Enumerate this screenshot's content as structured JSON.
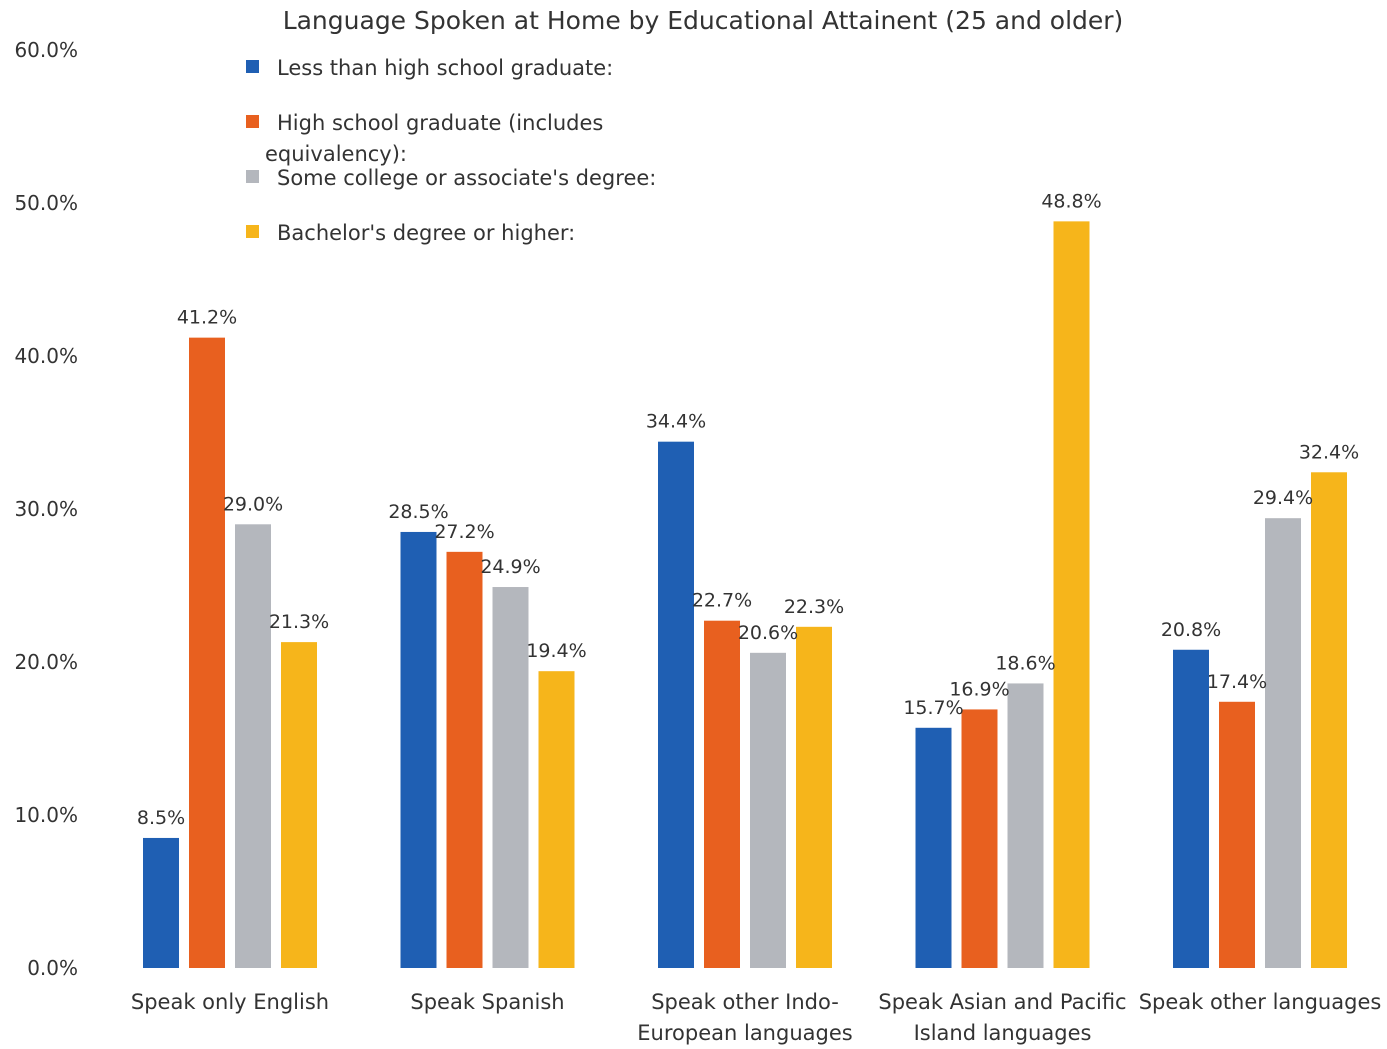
{
  "chart_data": {
    "type": "bar",
    "title": "Language Spoken at Home by Educational Attainent (25 and older)",
    "xlabel": "",
    "ylabel": "",
    "ylim": [
      0,
      60
    ],
    "y_ticks": [
      "0.0%",
      "10.0%",
      "20.0%",
      "30.0%",
      "40.0%",
      "50.0%",
      "60.0%"
    ],
    "grid": false,
    "legend_position": "top-left",
    "categories": [
      [
        "Speak only English"
      ],
      [
        "Speak Spanish"
      ],
      [
        "Speak other Indo-",
        "European languages"
      ],
      [
        "Speak Asian and Pacific",
        "Island languages"
      ],
      [
        "Speak other languages"
      ]
    ],
    "series": [
      {
        "name": "Less than high school graduate:",
        "legend_lines": [
          "Less than high school graduate:"
        ],
        "color": "#1F5FB3",
        "values": [
          8.5,
          28.5,
          34.4,
          15.7,
          20.8
        ],
        "labels": [
          "8.5%",
          "28.5%",
          "34.4%",
          "15.7%",
          "20.8%"
        ]
      },
      {
        "name": "High school graduate (includes equivalency):",
        "legend_lines": [
          "High school graduate (includes",
          "equivalency):"
        ],
        "color": "#E8601F",
        "values": [
          41.2,
          27.2,
          22.7,
          16.9,
          17.4
        ],
        "labels": [
          "41.2%",
          "27.2%",
          "22.7%",
          "16.9%",
          "17.4%"
        ]
      },
      {
        "name": "Some college or associate's degree:",
        "legend_lines": [
          "Some college or associate's degree:"
        ],
        "color": "#B4B7BD",
        "values": [
          29.0,
          24.9,
          20.6,
          18.6,
          29.4
        ],
        "labels": [
          "29.0%",
          "24.9%",
          "20.6%",
          "18.6%",
          "29.4%"
        ]
      },
      {
        "name": "Bachelor's degree or higher:",
        "legend_lines": [
          "Bachelor's degree or higher:"
        ],
        "color": "#F6B51B",
        "values": [
          21.3,
          19.4,
          22.3,
          48.8,
          32.4
        ],
        "labels": [
          "21.3%",
          "19.4%",
          "22.3%",
          "48.8%",
          "32.4%"
        ]
      }
    ]
  }
}
